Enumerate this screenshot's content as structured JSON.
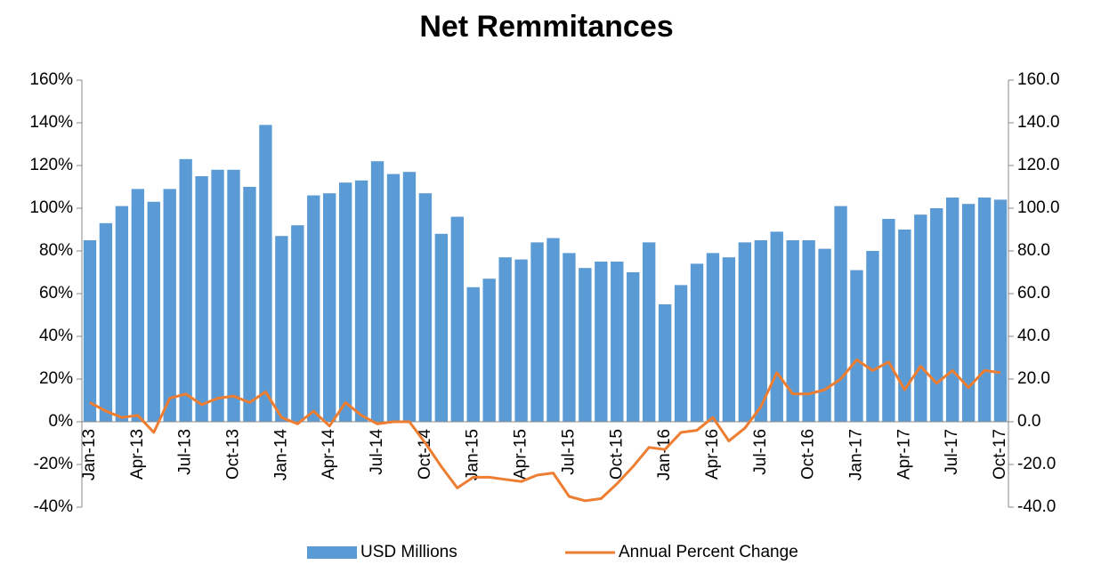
{
  "chart_data": {
    "type": "bar",
    "title": "Net Remmitances",
    "categories": [
      "Jan-13",
      null,
      null,
      "Apr-13",
      null,
      null,
      "Jul-13",
      null,
      null,
      "Oct-13",
      null,
      null,
      "Jan-14",
      null,
      null,
      "Apr-14",
      null,
      null,
      "Jul-14",
      null,
      null,
      "Oct-14",
      null,
      null,
      "Jan-15",
      null,
      null,
      "Apr-15",
      null,
      null,
      "Jul-15",
      null,
      null,
      "Oct-15",
      null,
      null,
      "Jan-16",
      null,
      null,
      "Apr-16",
      null,
      null,
      "Jul-16",
      null,
      null,
      "Oct-16",
      null,
      null,
      "Jan-17",
      null,
      null,
      "Apr-17",
      null,
      null,
      "Jul-17",
      null,
      null,
      "Oct-17"
    ],
    "series": [
      {
        "name": "USD Millions",
        "type": "bar",
        "axis": "y2",
        "color": "#5b9bd5",
        "values": [
          85,
          93,
          101,
          109,
          103,
          109,
          123,
          115,
          118,
          118,
          110,
          139,
          87,
          92,
          106,
          107,
          112,
          113,
          122,
          116,
          117,
          107,
          88,
          96,
          63,
          67,
          77,
          76,
          84,
          86,
          79,
          72,
          75,
          75,
          70,
          84,
          55,
          64,
          74,
          79,
          77,
          84,
          85,
          89,
          85,
          85,
          81,
          101,
          71,
          80,
          95,
          90,
          97,
          100,
          105,
          102,
          105,
          104
        ]
      },
      {
        "name": "Annual Percent Change",
        "type": "line",
        "axis": "y",
        "color": "#ed7d31",
        "values": [
          9,
          5,
          2,
          3,
          -5,
          11,
          13,
          8,
          11,
          12,
          9,
          14,
          2,
          -1,
          5,
          -2,
          9,
          3,
          -1,
          0,
          0,
          -10,
          -21,
          -31,
          -26,
          -26,
          -27,
          -28,
          -25,
          -24,
          -35,
          -37,
          -36,
          -29,
          -21,
          -12,
          -13,
          -5,
          -4,
          2,
          -9,
          -3,
          7,
          23,
          13,
          13,
          15,
          20,
          29,
          24,
          28,
          15,
          26,
          18,
          24,
          16,
          24,
          23
        ]
      }
    ],
    "ylim": [
      -40,
      160
    ],
    "yticks": [
      {
        "value": -40,
        "label": "-40%"
      },
      {
        "value": -20,
        "label": "-20%"
      },
      {
        "value": 0,
        "label": "0%"
      },
      {
        "value": 20,
        "label": "20%"
      },
      {
        "value": 40,
        "label": "40%"
      },
      {
        "value": 60,
        "label": "60%"
      },
      {
        "value": 80,
        "label": "80%"
      },
      {
        "value": 100,
        "label": "100%"
      },
      {
        "value": 120,
        "label": "120%"
      },
      {
        "value": 140,
        "label": "140%"
      },
      {
        "value": 160,
        "label": "160%"
      }
    ],
    "y2lim": [
      -40,
      160
    ],
    "y2ticks": [
      {
        "value": -40,
        "label": "-40.0"
      },
      {
        "value": -20,
        "label": "-20.0"
      },
      {
        "value": 0,
        "label": "0.0"
      },
      {
        "value": 20,
        "label": "20.0"
      },
      {
        "value": 40,
        "label": "40.0"
      },
      {
        "value": 60,
        "label": "60.0"
      },
      {
        "value": 80,
        "label": "80.0"
      },
      {
        "value": 100,
        "label": "100.0"
      },
      {
        "value": 120,
        "label": "120.0"
      },
      {
        "value": 140,
        "label": "140.0"
      },
      {
        "value": 160,
        "label": "160.0"
      }
    ],
    "legend": "bottom"
  }
}
